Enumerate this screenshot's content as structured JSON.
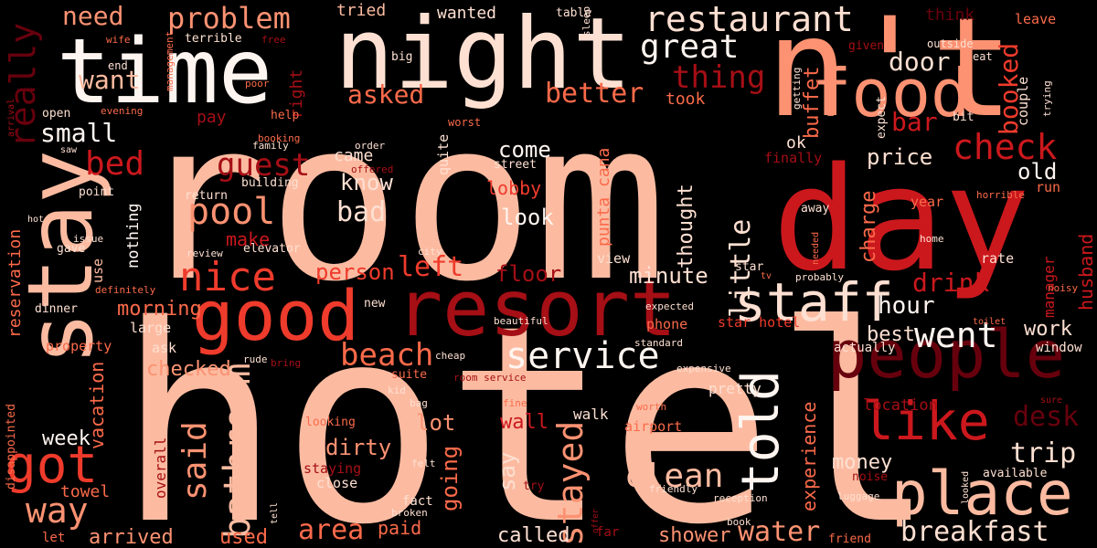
{
  "words": {
    "hotel": "hotel",
    "room": "room",
    "nt": "n't",
    "night": "night",
    "time": "time",
    "day": "day",
    "resort": "resort",
    "stay": "stay",
    "food": "food",
    "good": "good",
    "people": "people",
    "place": "place",
    "staff": "staff",
    "like": "like",
    "told": "told",
    "restaurant": "restaurant",
    "problem": "problem",
    "check": "check",
    "nice": "nice",
    "got": "got",
    "pool": "pool",
    "bathroom": "bathroom",
    "great": "great",
    "service": "service",
    "breakfast": "breakfast",
    "stayed": "stayed",
    "beach": "beach",
    "went": "went",
    "clean": "clean",
    "said": "said",
    "really": "really",
    "bed": "bed",
    "guest": "guest",
    "way": "way",
    "asked": "asked",
    "better": "better",
    "want": "want",
    "thing": "thing",
    "need": "need",
    "door": "door",
    "bar": "bar",
    "booked": "booked",
    "drink": "drink",
    "hour": "hour",
    "water": "water",
    "area": "area",
    "trip": "trip",
    "desk": "desk",
    "little": "little",
    "price": "price",
    "old": "old",
    "small": "small",
    "bad": "bad",
    "dirty": "dirty",
    "lot": "lot",
    "arrived": "arrived",
    "look": "look",
    "know": "know",
    "come": "come",
    "person": "person",
    "left": "left",
    "floor": "floor",
    "minute": "minute",
    "morning": "morning",
    "work": "work",
    "best": "best",
    "week": "week",
    "checked": "checked",
    "lobby": "lobby",
    "make": "make",
    "used": "used",
    "called": "called",
    "shower": "shower",
    "paid": "paid",
    "wall": "wall",
    "going": "going",
    "say": "say",
    "money": "money",
    "experience": "experience",
    "buffet": "buffet",
    "charge": "charge",
    "thought": "thought",
    "punta_cana": "punta cana",
    "reservation": "reservation",
    "vacation": "vacation",
    "husband": "husband",
    "towel": "towel",
    "tried": "tried",
    "wanted": "wanted",
    "took": "took",
    "ok": "ok",
    "came": "came",
    "location": "location",
    "think": "think",
    "pay": "pay",
    "right": "right",
    "nothing": "nothing",
    "manager": "manager",
    "pretty": "pretty",
    "overall": "overall",
    "staying": "staying",
    "close": "close",
    "walk": "walk",
    "airport": "airport",
    "phone": "phone",
    "star_hotel": "star hotel",
    "actually": "actually",
    "window": "window",
    "year": "year",
    "run": "run",
    "rate": "rate",
    "view": "view",
    "large": "large",
    "ask": "ask",
    "property": "property",
    "let": "let",
    "fact": "fact",
    "far": "far",
    "use": "use",
    "return": "return",
    "building": "building",
    "point": "point",
    "street": "street",
    "open": "open",
    "help": "help",
    "end": "end",
    "big": "big",
    "terrible": "terrible",
    "table": "table",
    "management": "management",
    "wife": "wife",
    "free": "free",
    "sleep": "sleep",
    "leave": "leave",
    "given": "given",
    "outside": "outside",
    "eat": "eat",
    "couple": "couple",
    "trying": "trying",
    "bit": "bit",
    "expect": "expect",
    "getting": "getting",
    "poor": "poor",
    "evening": "evening",
    "arrival": "arrival",
    "booking": "booking",
    "family": "family",
    "order": "order",
    "offered": "offered",
    "worst": "worst",
    "finally": "finally",
    "saw": "saw",
    "hot": "hot",
    "issue": "issue",
    "gave": "gave",
    "review": "review",
    "elevator": "elevator",
    "city": "city",
    "definitely": "definitely",
    "star": "star",
    "tv": "tv",
    "probably": "probably",
    "needed": "needed",
    "away": "away",
    "home": "home",
    "horrible": "horrible",
    "noisy": "noisy",
    "dinner": "dinner",
    "new": "new",
    "expected": "expected",
    "beautiful": "beautiful",
    "standard": "standard",
    "expensive": "expensive",
    "toilet": "toilet",
    "rude": "rude",
    "bring": "bring",
    "cheap": "cheap",
    "suite": "suite",
    "kid": "kid",
    "room_service": "room service",
    "bag": "bag",
    "fine": "fine",
    "worth": "worth",
    "disappointed": "disappointed",
    "looking": "looking",
    "felt": "felt",
    "try": "try",
    "friendly": "friendly",
    "reception": "reception",
    "noise": "noise",
    "available": "available",
    "looked": "looked",
    "sure": "sure",
    "luggage": "luggage",
    "friend": "friend",
    "broken": "broken",
    "tell": "tell",
    "offer": "offer",
    "book": "book"
  },
  "colors": {
    "background": "#000000",
    "palette": [
      "#fff5f0",
      "#fee0d2",
      "#fcbba1",
      "#fc9272",
      "#fb6a4a",
      "#ef3b2c",
      "#cb181d",
      "#a50f15",
      "#67000d"
    ]
  }
}
